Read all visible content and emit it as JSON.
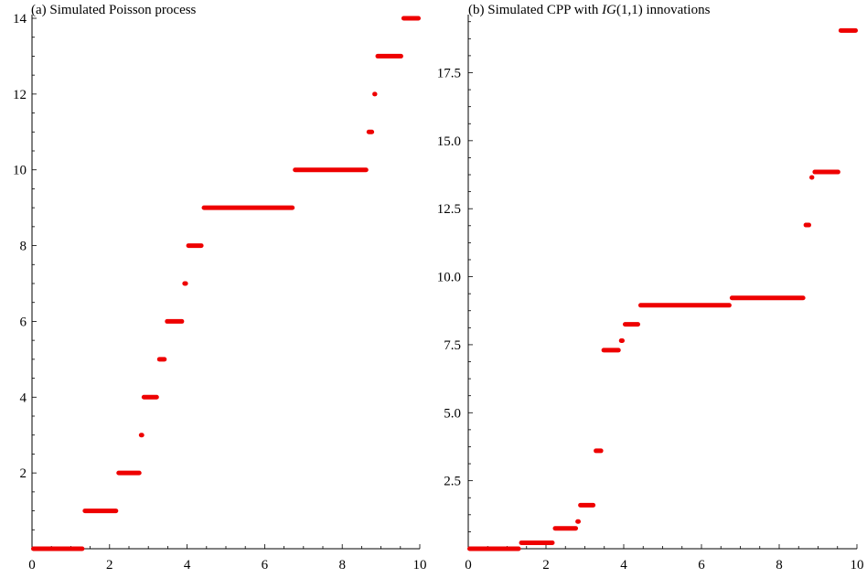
{
  "colors": {
    "series": "#ee0000",
    "axis": "#000000"
  },
  "chart_data": [
    {
      "type": "line",
      "subtype": "step",
      "title": "(a) Simulated Poisson process",
      "xlabel": "",
      "ylabel": "",
      "xlim": [
        0,
        10
      ],
      "ylim": [
        0,
        14
      ],
      "xticks": [
        0,
        2,
        4,
        6,
        8,
        10
      ],
      "xtick_labels": [
        "0",
        "2",
        "4",
        "6",
        "8",
        "10"
      ],
      "yticks": [
        2,
        4,
        6,
        8,
        10,
        12,
        14
      ],
      "ytick_labels": [
        "2",
        "4",
        "6",
        "8",
        "10",
        "12",
        "14"
      ],
      "series": [
        {
          "segments": [
            {
              "x0": 0.0,
              "x1": 1.33,
              "y": 0
            },
            {
              "x0": 1.33,
              "x1": 2.2,
              "y": 1
            },
            {
              "x0": 2.2,
              "x1": 2.8,
              "y": 2
            },
            {
              "x0": 2.8,
              "x1": 2.85,
              "y": 3
            },
            {
              "x0": 2.85,
              "x1": 3.25,
              "y": 4
            },
            {
              "x0": 3.25,
              "x1": 3.45,
              "y": 5
            },
            {
              "x0": 3.45,
              "x1": 3.9,
              "y": 6
            },
            {
              "x0": 3.9,
              "x1": 4.0,
              "y": 7
            },
            {
              "x0": 4.0,
              "x1": 4.4,
              "y": 8
            },
            {
              "x0": 4.4,
              "x1": 6.75,
              "y": 9
            },
            {
              "x0": 6.75,
              "x1": 8.65,
              "y": 10
            },
            {
              "x0": 8.65,
              "x1": 8.8,
              "y": 11
            },
            {
              "x0": 8.8,
              "x1": 8.88,
              "y": 12
            },
            {
              "x0": 8.88,
              "x1": 9.55,
              "y": 13
            },
            {
              "x0": 9.55,
              "x1": 10.0,
              "y": 14
            }
          ]
        }
      ]
    },
    {
      "type": "line",
      "subtype": "step",
      "title_parts": [
        "(b) Simulated CPP with ",
        "IG",
        "(1,1) innovations"
      ],
      "xlabel": "",
      "ylabel": "",
      "xlim": [
        0,
        10
      ],
      "ylim": [
        0,
        19.5
      ],
      "xticks": [
        0,
        2,
        4,
        6,
        8,
        10
      ],
      "xtick_labels": [
        "0",
        "2",
        "4",
        "6",
        "8",
        "10"
      ],
      "yticks": [
        2.5,
        5.0,
        7.5,
        10.0,
        12.5,
        15.0,
        17.5
      ],
      "ytick_labels": [
        "2.5",
        "5.0",
        "7.5",
        "10.0",
        "12.5",
        "15.0",
        "17.5"
      ],
      "series": [
        {
          "segments": [
            {
              "x0": 0.0,
              "x1": 1.33,
              "y": 0.0
            },
            {
              "x0": 1.33,
              "x1": 2.2,
              "y": 0.22
            },
            {
              "x0": 2.2,
              "x1": 2.8,
              "y": 0.75
            },
            {
              "x0": 2.8,
              "x1": 2.85,
              "y": 1.0
            },
            {
              "x0": 2.85,
              "x1": 3.25,
              "y": 1.6
            },
            {
              "x0": 3.25,
              "x1": 3.45,
              "y": 3.6
            },
            {
              "x0": 3.45,
              "x1": 3.9,
              "y": 7.3
            },
            {
              "x0": 3.9,
              "x1": 4.0,
              "y": 7.65
            },
            {
              "x0": 4.0,
              "x1": 4.4,
              "y": 8.25
            },
            {
              "x0": 4.4,
              "x1": 6.75,
              "y": 8.95
            },
            {
              "x0": 6.75,
              "x1": 8.65,
              "y": 9.22
            },
            {
              "x0": 8.65,
              "x1": 8.8,
              "y": 11.9
            },
            {
              "x0": 8.8,
              "x1": 8.88,
              "y": 13.65
            },
            {
              "x0": 8.88,
              "x1": 9.55,
              "y": 13.85
            },
            {
              "x0": 9.55,
              "x1": 10.0,
              "y": 19.05
            }
          ]
        }
      ]
    }
  ]
}
